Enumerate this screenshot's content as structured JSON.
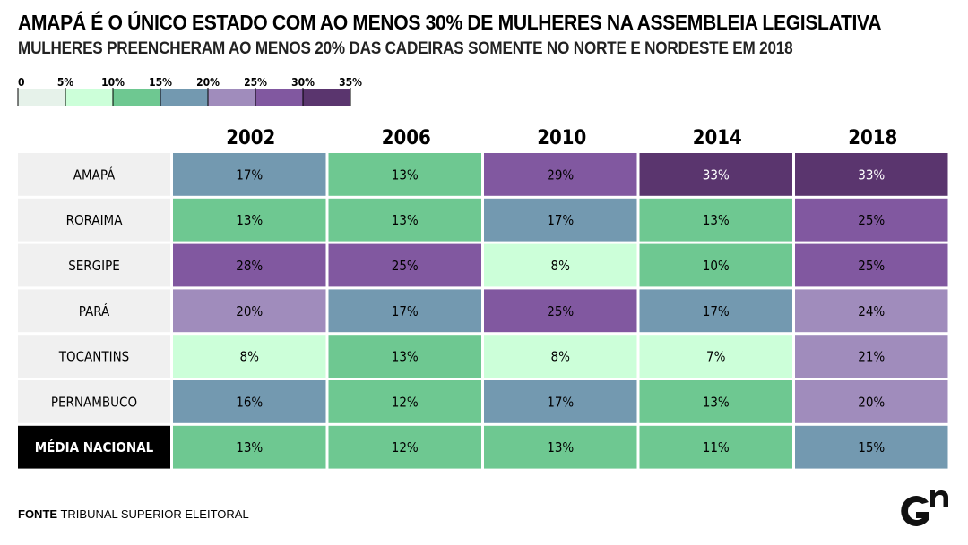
{
  "title": "AMAPÁ É O ÚNICO ESTADO COM AO MENOS 30% DE MULHERES NA ASSEMBLEIA LEGISLATIVA",
  "subtitle": "MULHERES PREENCHERAM AO MENOS 20% DAS CADEIRAS SOMENTE NO NORTE E NORDESTE EM 2018",
  "source": {
    "label": "FONTE",
    "text": "TRIBUNAL SUPERIOR ELEITORAL"
  },
  "logo": {
    "icon": "gn-logo-icon"
  },
  "legend": {
    "ticks": [
      "0",
      "5%",
      "10%",
      "15%",
      "20%",
      "25%",
      "30%",
      "35%"
    ],
    "colors": [
      "#e6f2ea",
      "#ccffd9",
      "#6ec891",
      "#7399b0",
      "#a08cbc",
      "#8158a0",
      "#5a356e"
    ]
  },
  "chart_data": {
    "type": "heatmap",
    "title": "AMAPÁ É O ÚNICO ESTADO COM AO MENOS 30% DE MULHERES NA ASSEMBLEIA LEGISLATIVA",
    "subtitle": "MULHERES PREENCHERAM AO MENOS 20% DAS CADEIRAS SOMENTE NO NORTE E NORDESTE EM 2018",
    "x": [
      "2002",
      "2006",
      "2010",
      "2014",
      "2018"
    ],
    "y": [
      "AMAPÁ",
      "RORAIMA",
      "SERGIPE",
      "PARÁ",
      "TOCANTINS",
      "PERNAMBUCO",
      "MÉDIA NACIONAL"
    ],
    "highlight_row": "MÉDIA NACIONAL",
    "values": [
      [
        17,
        13,
        29,
        33,
        33
      ],
      [
        13,
        13,
        17,
        13,
        25
      ],
      [
        28,
        25,
        8,
        10,
        25
      ],
      [
        20,
        17,
        25,
        17,
        24
      ],
      [
        8,
        13,
        8,
        7,
        21
      ],
      [
        16,
        12,
        17,
        13,
        20
      ],
      [
        13,
        12,
        13,
        11,
        15
      ]
    ],
    "unit": "%",
    "scale_breaks": [
      0,
      5,
      10,
      15,
      20,
      25,
      30,
      35
    ]
  }
}
